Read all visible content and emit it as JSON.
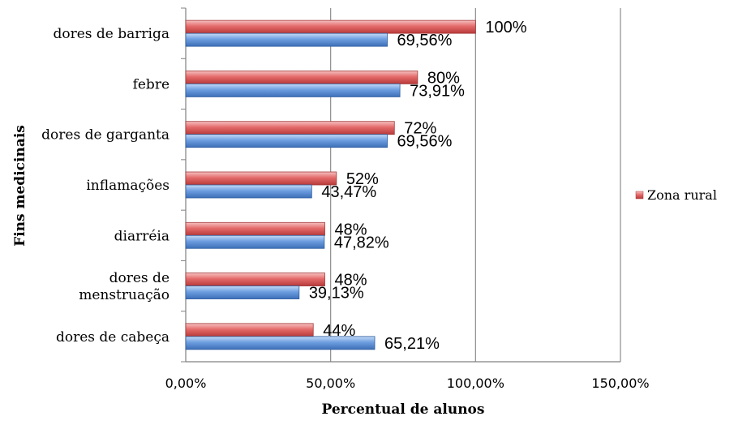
{
  "chart_data": {
    "type": "bar",
    "orientation": "horizontal",
    "categories": [
      "dores de barriga",
      "febre",
      "dores de garganta",
      "inflamações",
      "diarréia",
      "dores de menstruação",
      "dores de cabeça"
    ],
    "category_label_lines": [
      [
        "dores de barriga"
      ],
      [
        "febre"
      ],
      [
        "dores de garganta"
      ],
      [
        "inflamações"
      ],
      [
        "diarréia"
      ],
      [
        "dores de",
        "menstruação"
      ],
      [
        "dores de cabeça"
      ]
    ],
    "series": [
      {
        "name": "Zona rural",
        "color": "#e05a5a",
        "values": [
          100,
          80,
          72,
          52,
          48,
          48,
          44
        ],
        "labels": [
          "100%",
          "80%",
          "72%",
          "52%",
          "48%",
          "48%",
          "44%"
        ]
      },
      {
        "color": "#5a8fd8",
        "values": [
          69.56,
          73.91,
          69.56,
          43.47,
          47.82,
          39.13,
          65.21
        ],
        "labels": [
          "69,56%",
          "73,91%",
          "69,56%",
          "43,47%",
          "47,82%",
          "39,13%",
          "65,21%"
        ]
      }
    ],
    "xlim": [
      0,
      150
    ],
    "xticks": [
      0,
      50,
      100,
      150
    ],
    "xtick_labels": [
      "0,00%",
      "50,00%",
      "100,00%",
      "150,00%"
    ],
    "xlabel": "Percentual de alunos",
    "ylabel": "Fins medicinais",
    "grid": "vertical",
    "legend": {
      "placement": "right",
      "entries": [
        "Zona rural"
      ]
    }
  }
}
